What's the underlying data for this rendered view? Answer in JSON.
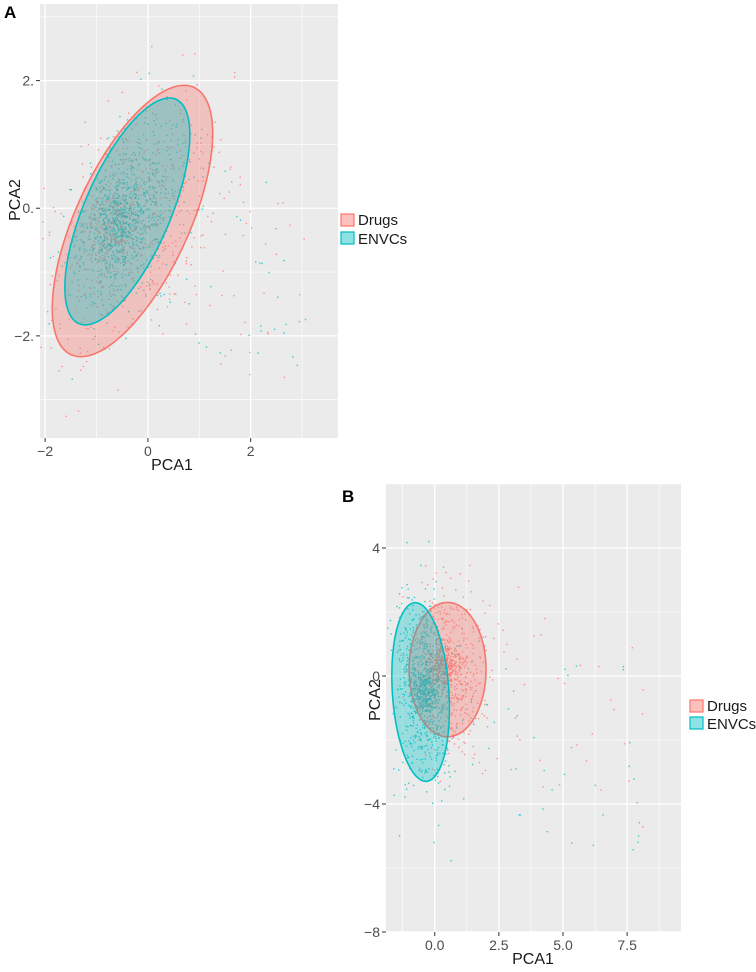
{
  "chart_data": [
    {
      "panel": "A",
      "type": "scatter",
      "xlabel": "PCA1",
      "ylabel": "PCA2",
      "xlim": [
        -2.1,
        3.7
      ],
      "ylim": [
        -3.6,
        3.2
      ],
      "x_ticks": [
        -2,
        0,
        2
      ],
      "x_tick_labels": [
        "−2",
        "0",
        "2"
      ],
      "y_ticks": [
        -2,
        0,
        2
      ],
      "y_tick_labels": [
        "−2.",
        "0.",
        "2."
      ],
      "grid": true,
      "legend_position": "right",
      "legend": [
        "Drugs",
        "ENVCs"
      ],
      "series": [
        {
          "name": "Drugs",
          "color": "#F8766D",
          "ellipse": {
            "cx": -0.3,
            "cy": -0.2,
            "rx": 2.42,
            "ry": 1.05,
            "angle_deg": 58
          },
          "core": {
            "x": -0.7,
            "y": -0.3
          },
          "spread": [
            0.9,
            0.9
          ]
        },
        {
          "name": "ENVCs",
          "color": "#00BFC4",
          "ellipse": {
            "cx": -0.4,
            "cy": -0.05,
            "rx": 2.0,
            "ry": 0.8,
            "angle_deg": 60
          },
          "core": {
            "x": -0.6,
            "y": -0.2
          },
          "spread": [
            1.0,
            1.1
          ]
        }
      ]
    },
    {
      "panel": "B",
      "type": "scatter",
      "xlabel": "PCA1",
      "ylabel": "PCA2",
      "xlim": [
        -1.9,
        9.6
      ],
      "ylim": [
        -8.0,
        6.0
      ],
      "x_ticks": [
        0,
        2.5,
        5,
        7.5
      ],
      "x_tick_labels": [
        "0.0",
        "2.5",
        "5.0",
        "7.5"
      ],
      "y_ticks": [
        -8,
        -4,
        0,
        4
      ],
      "y_tick_labels": [
        "−8",
        "−4",
        "0",
        "4"
      ],
      "grid": true,
      "legend_position": "right",
      "legend": [
        "Drugs",
        "ENVCs"
      ],
      "series": [
        {
          "name": "Drugs",
          "color": "#F8766D",
          "ellipse": {
            "cx": 0.5,
            "cy": 0.2,
            "rx": 1.5,
            "ry": 2.1,
            "angle_deg": 0
          },
          "core": {
            "x": 0.2,
            "y": 0.3
          },
          "spread": [
            1.2,
            1.2
          ]
        },
        {
          "name": "ENVCs",
          "color": "#00BFC4",
          "ellipse": {
            "cx": -0.55,
            "cy": -0.5,
            "rx": 1.1,
            "ry": 2.8,
            "angle_deg": 5
          },
          "core": {
            "x": -0.4,
            "y": -0.5
          },
          "spread": [
            0.9,
            1.1
          ]
        }
      ]
    }
  ]
}
